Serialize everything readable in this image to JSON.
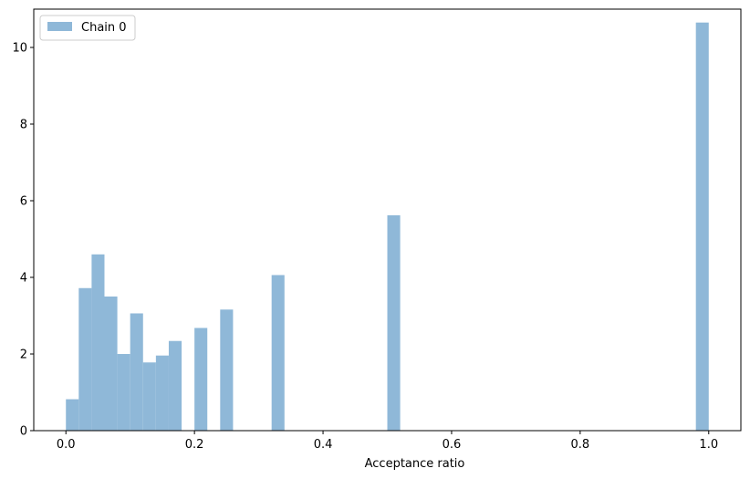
{
  "chart_data": {
    "type": "bar",
    "title": "",
    "xlabel": "Acceptance ratio",
    "ylabel": "",
    "xlim": [
      -0.05,
      1.05
    ],
    "ylim": [
      0,
      11
    ],
    "grid": false,
    "legend": {
      "placement": "top-left"
    },
    "bin_width": 0.02,
    "series": [
      {
        "name": "Chain 0",
        "color": "#8fb8d8",
        "bars": [
          {
            "x0": 0.0,
            "value": 0.82
          },
          {
            "x0": 0.02,
            "value": 3.72
          },
          {
            "x0": 0.04,
            "value": 4.6
          },
          {
            "x0": 0.06,
            "value": 3.5
          },
          {
            "x0": 0.08,
            "value": 2.0
          },
          {
            "x0": 0.1,
            "value": 3.06
          },
          {
            "x0": 0.12,
            "value": 1.78
          },
          {
            "x0": 0.14,
            "value": 1.96
          },
          {
            "x0": 0.16,
            "value": 2.34
          },
          {
            "x0": 0.2,
            "value": 2.68
          },
          {
            "x0": 0.24,
            "value": 3.16
          },
          {
            "x0": 0.32,
            "value": 4.06
          },
          {
            "x0": 0.5,
            "value": 5.62
          },
          {
            "x0": 0.98,
            "value": 10.65
          }
        ]
      }
    ],
    "xticks": [
      {
        "value": 0.0,
        "label": "0.0"
      },
      {
        "value": 0.2,
        "label": "0.2"
      },
      {
        "value": 0.4,
        "label": "0.4"
      },
      {
        "value": 0.6,
        "label": "0.6"
      },
      {
        "value": 0.8,
        "label": "0.8"
      },
      {
        "value": 1.0,
        "label": "1.0"
      }
    ],
    "yticks": [
      {
        "value": 0,
        "label": "0"
      },
      {
        "value": 2,
        "label": "2"
      },
      {
        "value": 4,
        "label": "4"
      },
      {
        "value": 6,
        "label": "6"
      },
      {
        "value": 8,
        "label": "8"
      },
      {
        "value": 10,
        "label": "10"
      }
    ]
  }
}
